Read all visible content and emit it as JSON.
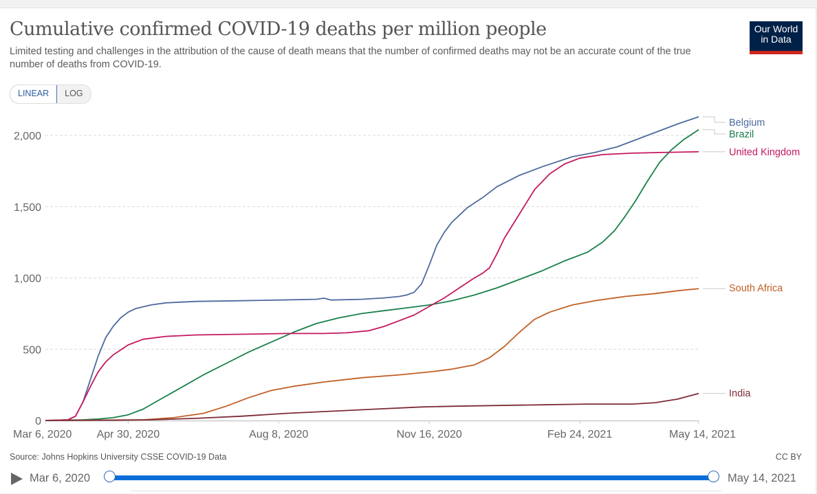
{
  "header": {
    "title": "Cumulative confirmed COVID-19 deaths per million people",
    "subtitle": "Limited testing and challenges in the attribution of the cause of death means that the number of confirmed deaths may not be an accurate count of the true number of deaths from COVID-19.",
    "logo_line1": "Our World",
    "logo_line2": "in Data"
  },
  "controls": {
    "scale_options": [
      "LINEAR",
      "LOG"
    ],
    "selected_scale": "LINEAR"
  },
  "footer": {
    "source": "Source: Johns Hopkins University CSSE COVID-19 Data",
    "license": "CC BY"
  },
  "timeline": {
    "start_label": "Mar 6, 2020",
    "end_label": "May 14, 2021",
    "play_icon": "play-icon",
    "selected_range_fraction": [
      0,
      1
    ]
  },
  "chart_data": {
    "type": "line",
    "title": "Cumulative confirmed COVID-19 deaths per million people",
    "xlabel": "",
    "ylabel": "",
    "x_unit": "days since Mar 6, 2020",
    "xlim": [
      0,
      434
    ],
    "ylim": [
      0,
      2150
    ],
    "grid": "horizontal-dashed",
    "legend": "right-inline",
    "y_ticks": [
      {
        "value": 0,
        "label": "0"
      },
      {
        "value": 500,
        "label": "500"
      },
      {
        "value": 1000,
        "label": "1,000"
      },
      {
        "value": 1500,
        "label": "1,500"
      },
      {
        "value": 2000,
        "label": "2,000"
      }
    ],
    "x_ticks": [
      {
        "value": 0,
        "label": "Mar 6, 2020"
      },
      {
        "value": 55,
        "label": "Apr 30, 2020"
      },
      {
        "value": 155,
        "label": "Aug 8, 2020"
      },
      {
        "value": 255,
        "label": "Nov 16, 2020"
      },
      {
        "value": 355,
        "label": "Feb 24, 2021"
      },
      {
        "value": 434,
        "label": "May 14, 2021"
      }
    ],
    "series": [
      {
        "name": "Belgium",
        "color": "#4c6a9c",
        "x": [
          0,
          15,
          20,
          25,
          30,
          35,
          40,
          45,
          50,
          55,
          60,
          70,
          80,
          100,
          130,
          155,
          180,
          185,
          190,
          210,
          225,
          235,
          240,
          245,
          250,
          255,
          260,
          265,
          270,
          280,
          290,
          300,
          315,
          330,
          350,
          365,
          380,
          400,
          420,
          434
        ],
        "values": [
          0,
          5,
          30,
          130,
          290,
          450,
          580,
          660,
          720,
          760,
          785,
          810,
          825,
          835,
          840,
          845,
          850,
          858,
          845,
          850,
          860,
          870,
          880,
          900,
          960,
          1090,
          1230,
          1320,
          1390,
          1490,
          1560,
          1640,
          1720,
          1780,
          1850,
          1880,
          1920,
          2000,
          2080,
          2130
        ]
      },
      {
        "name": "Brazil",
        "color": "#18804a",
        "x": [
          0,
          25,
          35,
          45,
          55,
          65,
          75,
          90,
          105,
          120,
          135,
          150,
          165,
          180,
          195,
          210,
          225,
          240,
          255,
          270,
          285,
          300,
          315,
          330,
          345,
          360,
          370,
          378,
          385,
          392,
          400,
          408,
          416,
          424,
          434
        ],
        "values": [
          0,
          5,
          10,
          20,
          40,
          80,
          140,
          230,
          320,
          400,
          480,
          550,
          620,
          680,
          720,
          750,
          770,
          790,
          810,
          840,
          880,
          930,
          990,
          1050,
          1120,
          1180,
          1250,
          1330,
          1430,
          1540,
          1680,
          1810,
          1900,
          1970,
          2040
        ]
      },
      {
        "name": "United Kingdom",
        "color": "#c4185f",
        "x": [
          0,
          15,
          20,
          25,
          30,
          35,
          40,
          45,
          55,
          65,
          80,
          100,
          130,
          160,
          185,
          200,
          215,
          225,
          235,
          245,
          255,
          265,
          275,
          285,
          290,
          295,
          300,
          305,
          315,
          325,
          335,
          345,
          355,
          370,
          390,
          410,
          434
        ],
        "values": [
          0,
          5,
          30,
          130,
          240,
          340,
          410,
          460,
          530,
          570,
          590,
          600,
          605,
          610,
          610,
          615,
          630,
          660,
          700,
          740,
          800,
          860,
          930,
          1000,
          1030,
          1070,
          1170,
          1280,
          1450,
          1620,
          1730,
          1800,
          1840,
          1865,
          1875,
          1880,
          1885
        ]
      },
      {
        "name": "South Africa",
        "color": "#c15f25",
        "x": [
          0,
          65,
          85,
          105,
          120,
          135,
          150,
          165,
          185,
          210,
          235,
          255,
          270,
          285,
          295,
          305,
          315,
          325,
          335,
          350,
          365,
          385,
          405,
          420,
          434
        ],
        "values": [
          0,
          5,
          20,
          50,
          100,
          160,
          210,
          240,
          270,
          300,
          320,
          340,
          360,
          390,
          440,
          520,
          620,
          710,
          760,
          810,
          840,
          870,
          890,
          910,
          925
        ]
      },
      {
        "name": "India",
        "color": "#7d2b35",
        "x": [
          0,
          45,
          70,
          100,
          130,
          160,
          190,
          220,
          250,
          270,
          300,
          330,
          360,
          390,
          405,
          420,
          434
        ],
        "values": [
          0,
          2,
          5,
          15,
          30,
          50,
          65,
          80,
          95,
          100,
          105,
          110,
          115,
          115,
          125,
          150,
          190
        ]
      }
    ],
    "legend_label_values": {
      "Belgium": 2150,
      "Brazil": 2070,
      "United Kingdom": 1880,
      "South Africa": 925,
      "India": 190
    }
  }
}
